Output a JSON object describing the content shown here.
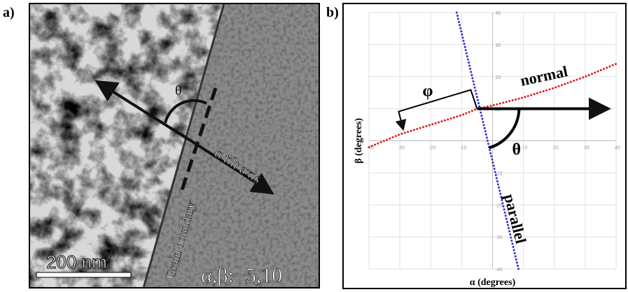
{
  "panel_labels": [
    "a)",
    "b)"
  ],
  "panel_a": {
    "theta": "θ",
    "axis_label": "α tilt axis",
    "boundary_label": "Grain boundary",
    "scale_bar": "200 nm",
    "tilt": "α,β:−5,10"
  },
  "chart_data": {
    "type": "line",
    "x_label": "α (degrees)",
    "y_label": "β (degrees)",
    "xlim": [
      -40,
      40
    ],
    "ylim": [
      -40,
      40
    ],
    "xticks": [
      -40,
      -30,
      -20,
      -10,
      0,
      10,
      20,
      30,
      40
    ],
    "yticks": [
      -40,
      -30,
      -20,
      -10,
      10,
      20,
      30,
      40
    ],
    "grid": true,
    "series": [
      {
        "name": "normal",
        "color": "#e02020",
        "x": [
          -40,
          -30,
          -20,
          -10,
          -5,
          0,
          10,
          20,
          30,
          40
        ],
        "values": [
          -2,
          2,
          5,
          8,
          10,
          11,
          13.5,
          16.5,
          20,
          24
        ]
      },
      {
        "name": "parallel",
        "color": "#3030d0",
        "x": [
          -11.6,
          -9.1,
          -6.6,
          -4.1,
          -1.6,
          0.9,
          3.4,
          5.9,
          8.4
        ],
        "values": [
          40,
          30,
          20,
          10,
          0,
          -10,
          -20,
          -30,
          -40
        ]
      }
    ],
    "annotations": [
      "φ",
      "θ"
    ]
  }
}
